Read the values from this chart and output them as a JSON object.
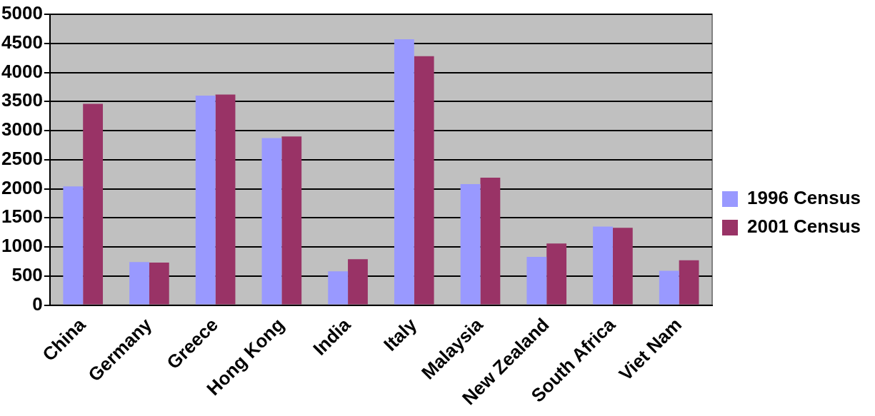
{
  "chart_data": {
    "type": "bar",
    "categories": [
      "China",
      "Germany",
      "Greece",
      "Hong Kong",
      "India",
      "Italy",
      "Malaysia",
      "New Zealand",
      "South Africa",
      "Viet Nam"
    ],
    "series": [
      {
        "name": "1996 Census",
        "color": "#9999ff",
        "values": [
          2040,
          740,
          3600,
          2870,
          580,
          4570,
          2080,
          830,
          1350,
          590
        ]
      },
      {
        "name": "2001 Census",
        "color": "#993366",
        "values": [
          3460,
          730,
          3620,
          2900,
          790,
          4280,
          2190,
          1060,
          1330,
          770
        ]
      }
    ],
    "ylim": [
      0,
      5000
    ],
    "yticks": [
      0,
      500,
      1000,
      1500,
      2000,
      2500,
      3000,
      3500,
      4000,
      4500,
      5000
    ],
    "grid": "y",
    "legend": "right"
  }
}
